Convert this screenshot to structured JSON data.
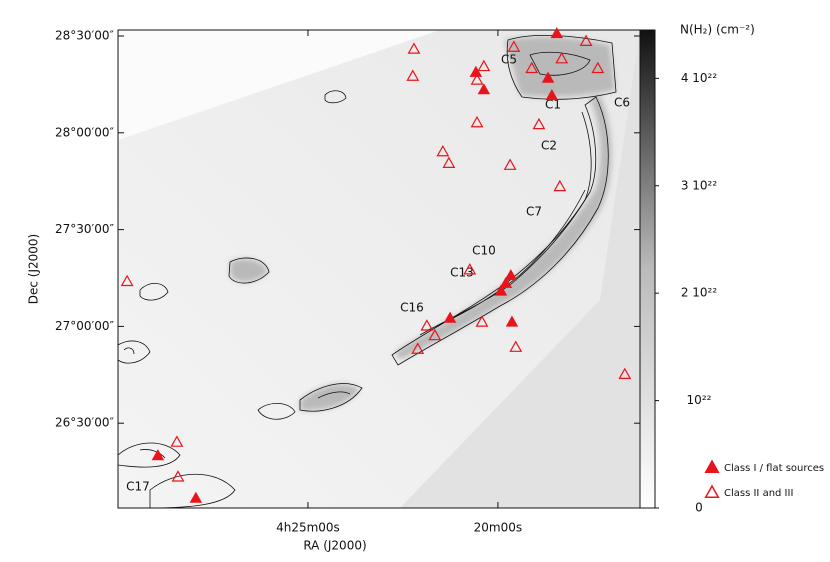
{
  "chart_data": {
    "type": "scatter",
    "x_label": "RA (J2000)",
    "y_label": "Dec (J2000)",
    "colorbar_label": "N(H₂) (cm⁻²)",
    "xlim": [
      30.0,
      16.26
    ],
    "ylim": [
      26.062,
      28.531
    ],
    "xticks": [
      {
        "value": 25,
        "label": "4h25m00s"
      },
      {
        "value": 20,
        "label": "20m00s"
      }
    ],
    "yticks": [
      {
        "value": 26.5,
        "label": "26°30′00″"
      },
      {
        "value": 27.0,
        "label": "27°00′00″"
      },
      {
        "value": 27.5,
        "label": "27°30′00″"
      },
      {
        "value": 28.0,
        "label": "28°00′00″"
      },
      {
        "value": 28.5,
        "label": "28°30′00″"
      }
    ],
    "colorbar_lim": [
      0,
      4.45e+22
    ],
    "colorbar_ticks": [
      0,
      {
        "value": 1e+22,
        "label": "10²²"
      },
      {
        "value": 2e+22,
        "label": "2 10²²"
      },
      {
        "value": 3e+22,
        "label": "3 10²²"
      },
      {
        "value": 4e+22,
        "label": "4 10²²"
      }
    ],
    "annotations": [
      "C1",
      "C2",
      "C5",
      "C6",
      "C7",
      "C10",
      "C13",
      "C16",
      "C17"
    ],
    "series": [
      {
        "name": "Class I / flat sources",
        "color": "#e8141c",
        "marker": "filled",
        "x": [
          20.58,
          20.37,
          18.45,
          18.68,
          18.58,
          19.66,
          19.79,
          19.92,
          19.63,
          21.26,
          28.95,
          27.95
        ],
        "y": [
          28.31,
          28.22,
          28.51,
          28.28,
          28.19,
          27.26,
          27.22,
          27.18,
          27.02,
          27.04,
          26.33,
          26.11
        ]
      },
      {
        "name": "Class II and III",
        "color": "#e8141c",
        "marker": "open",
        "x": [
          22.21,
          22.24,
          20.37,
          20.55,
          20.55,
          21.45,
          21.29,
          19.68,
          18.37,
          18.92,
          19.58,
          19.11,
          17.68,
          17.37,
          18.32,
          20.74,
          21.87,
          22.11,
          20.42,
          19.53,
          16.66,
          29.76,
          28.45,
          28.42,
          21.66
        ],
        "y": [
          28.43,
          28.29,
          28.34,
          28.27,
          28.05,
          27.9,
          27.84,
          27.83,
          27.72,
          28.04,
          28.44,
          28.33,
          28.47,
          28.33,
          28.38,
          27.29,
          27.0,
          26.88,
          27.02,
          26.89,
          26.75,
          27.23,
          26.4,
          26.22,
          26.95
        ]
      }
    ]
  }
}
